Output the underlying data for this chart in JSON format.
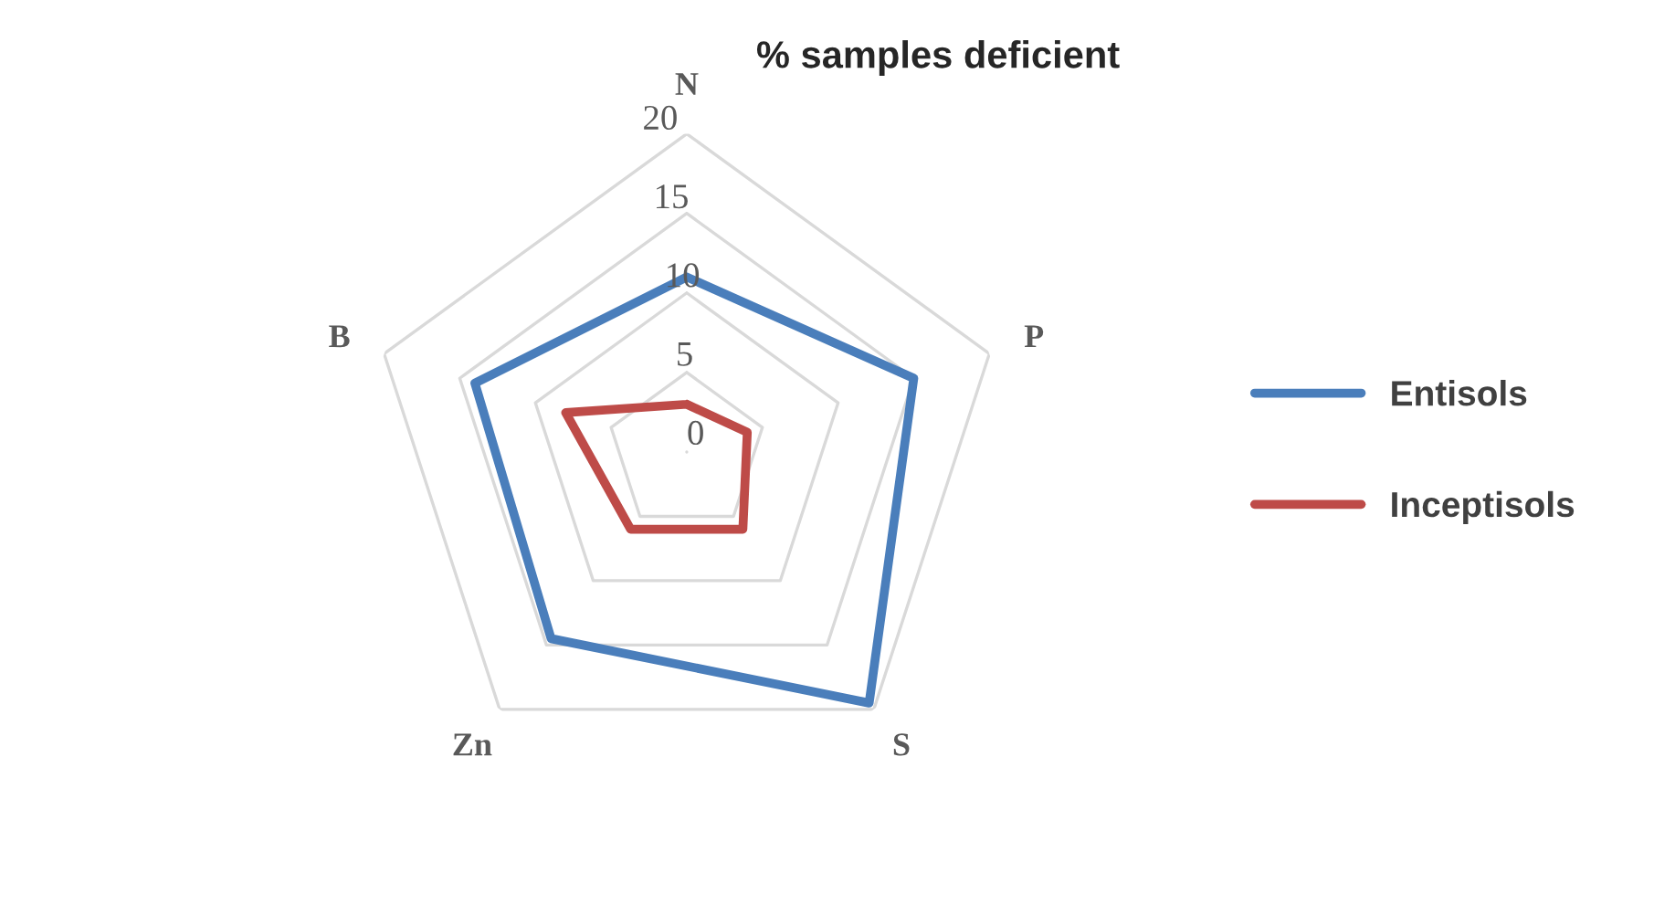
{
  "chart_data": {
    "type": "radar",
    "title": "% samples deficient",
    "categories": [
      "N",
      "P",
      "S",
      "Zn",
      "B"
    ],
    "series": [
      {
        "name": "Entisols",
        "color": "#4a7ebb",
        "values": [
          11,
          15,
          19.5,
          14.5,
          14
        ]
      },
      {
        "name": "Inceptisols",
        "color": "#be4b48",
        "values": [
          3,
          4,
          6,
          6,
          8
        ]
      }
    ],
    "ylim": [
      0,
      20
    ],
    "yticks": [
      0,
      5,
      10,
      15,
      20
    ],
    "grid": true,
    "legend": "right"
  }
}
